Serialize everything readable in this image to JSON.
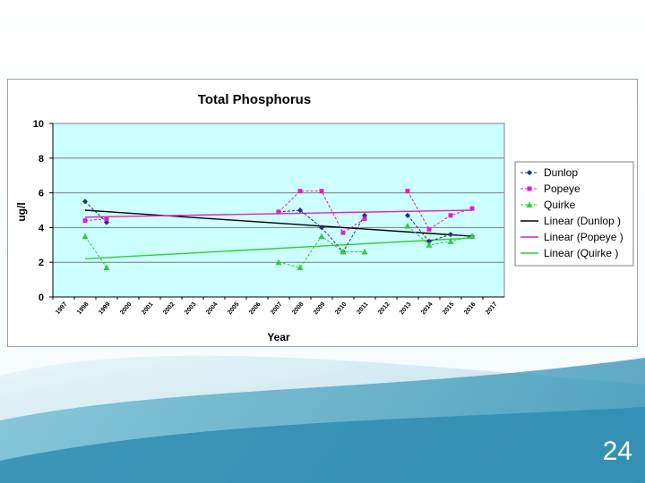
{
  "slide": {
    "number": "24"
  },
  "colors": {
    "plot_bg": "#ccffff",
    "dunlop": "#1f2f7a",
    "popeye": "#e020c8",
    "quirke": "#33cc33",
    "linear_dunlop": "#000000",
    "linear_popeye": "#e020c8",
    "linear_quirke": "#33cc33"
  },
  "chart_data": {
    "type": "line",
    "title": "Total Phosphorus",
    "xlabel": "Year",
    "ylabel": "ug/l",
    "x": [
      "1997",
      "1998",
      "1999",
      "2000",
      "2001",
      "2002",
      "2003",
      "2004",
      "2005",
      "2006",
      "2007",
      "2008",
      "2009",
      "2010",
      "2011",
      "2012",
      "2013",
      "2014",
      "2015",
      "2016",
      "2017"
    ],
    "ylim": [
      0,
      10
    ],
    "yticks": [
      "0",
      "2",
      "4",
      "6",
      "8",
      "10"
    ],
    "grid": "horizontal",
    "legend_position": "right",
    "series": [
      {
        "name": "Dunlop",
        "marker": "diamond",
        "values": [
          null,
          5.5,
          4.3,
          null,
          null,
          null,
          null,
          null,
          null,
          null,
          4.9,
          5.0,
          4.0,
          2.6,
          4.7,
          null,
          4.7,
          3.2,
          3.6,
          3.5,
          null
        ]
      },
      {
        "name": "Popeye",
        "marker": "square",
        "values": [
          null,
          4.4,
          4.5,
          null,
          null,
          null,
          null,
          null,
          null,
          null,
          4.9,
          6.1,
          6.1,
          3.7,
          4.5,
          null,
          6.1,
          3.9,
          4.7,
          5.1,
          null
        ]
      },
      {
        "name": "Quirke",
        "marker": "triangle",
        "values": [
          null,
          3.5,
          1.7,
          null,
          null,
          null,
          null,
          null,
          null,
          null,
          2.0,
          1.7,
          3.5,
          2.6,
          2.6,
          null,
          4.1,
          3.0,
          3.2,
          3.5,
          null
        ]
      }
    ],
    "trendlines": [
      {
        "name": "Linear (Dunlop )",
        "series": "Dunlop",
        "from": [
          "1998",
          5.0
        ],
        "to": [
          "2016",
          3.5
        ]
      },
      {
        "name": "Linear (Popeye )",
        "series": "Popeye",
        "from": [
          "1998",
          4.6
        ],
        "to": [
          "2016",
          5.0
        ]
      },
      {
        "name": "Linear (Quirke )",
        "series": "Quirke",
        "from": [
          "1998",
          2.2
        ],
        "to": [
          "2016",
          3.4
        ]
      }
    ]
  }
}
